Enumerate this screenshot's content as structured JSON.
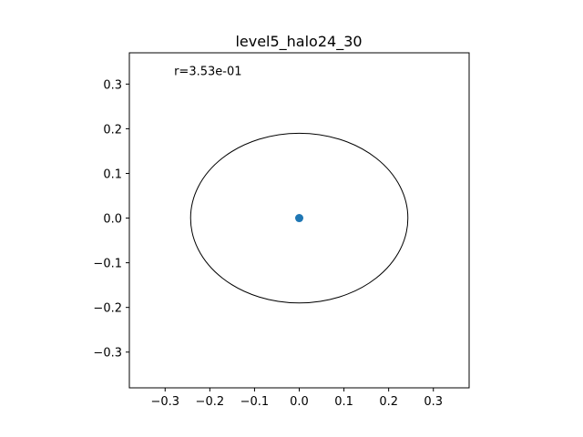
{
  "chart_data": {
    "type": "scatter",
    "title": "level5_halo24_30",
    "xlabel": "",
    "ylabel": "",
    "xlim": [
      -0.38,
      0.38
    ],
    "ylim": [
      -0.38,
      0.37
    ],
    "xticks": [
      -0.3,
      -0.2,
      -0.1,
      0.0,
      0.1,
      0.2,
      0.3
    ],
    "yticks": [
      -0.3,
      -0.2,
      -0.1,
      0.0,
      0.1,
      0.2,
      0.3
    ],
    "xtick_labels": [
      "−0.3",
      "−0.2",
      "−0.1",
      "0.0",
      "0.1",
      "0.2",
      "0.3"
    ],
    "ytick_labels": [
      "−0.3",
      "−0.2",
      "−0.1",
      "0.0",
      "0.1",
      "0.2",
      "0.3"
    ],
    "grid": false,
    "points": [
      {
        "x": 0.0,
        "y": 0.0
      }
    ],
    "point_color": "#1f77b4",
    "ellipse": {
      "cx": 0.0,
      "cy": 0.0,
      "rx": 0.243,
      "ry": 0.19,
      "color": "#000000"
    },
    "annotation": {
      "text": "r=3.53e-01",
      "x": -0.28,
      "y": 0.32
    }
  }
}
